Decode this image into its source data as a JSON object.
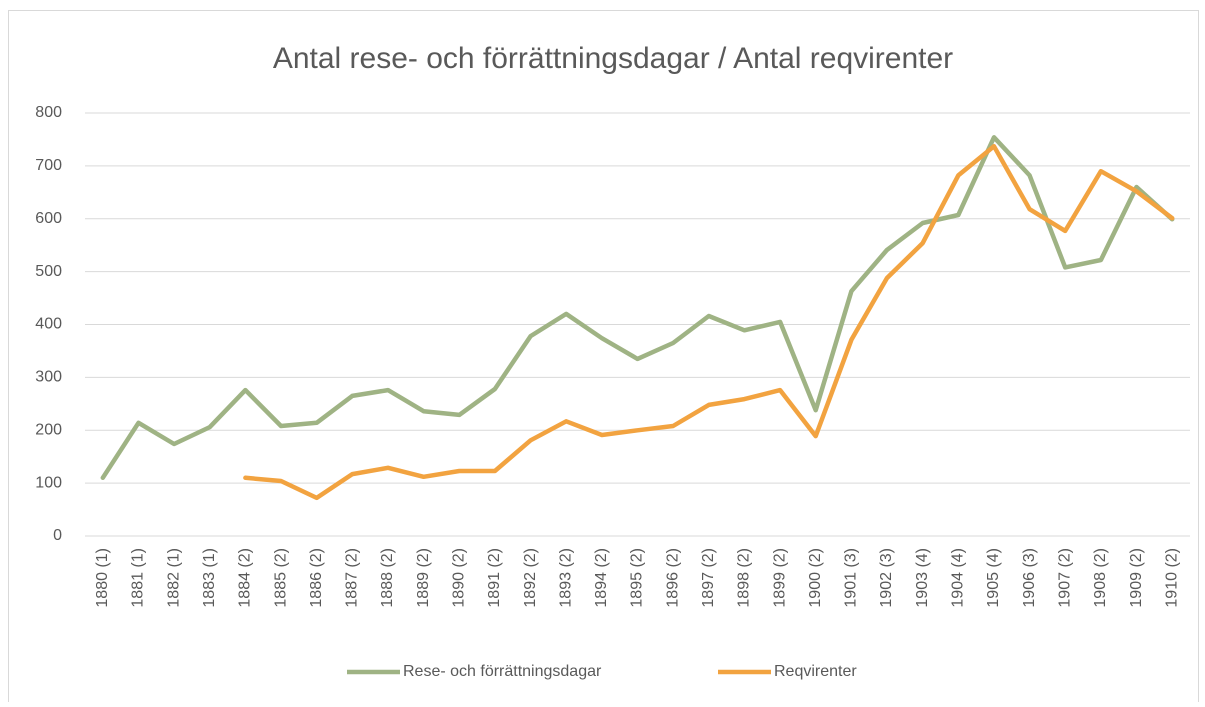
{
  "chart_data": {
    "type": "line",
    "title": "Antal rese- och förrättningsdagar / Antal reqvirenter",
    "categories": [
      "1880 (1)",
      "1881 (1)",
      "1882 (1)",
      "1883 (1)",
      "1884 (2)",
      "1885 (2)",
      "1886 (2)",
      "1887 (2)",
      "1888 (2)",
      "1889 (2)",
      "1890 (2)",
      "1891 (2)",
      "1892 (2)",
      "1893 (2)",
      "1894 (2)",
      "1895 (2)",
      "1896 (2)",
      "1897 (2)",
      "1898 (2)",
      "1899 (2)",
      "1900 (2)",
      "1901 (3)",
      "1902 (3)",
      "1903 (4)",
      "1904 (4)",
      "1905 (4)",
      "1906 (3)",
      "1907 (2)",
      "1908 (2)",
      "1909 (2)",
      "1910 (2)"
    ],
    "series": [
      {
        "name": "Rese- och förrättningsdagar",
        "color": "#9fb384",
        "values": [
          110,
          214,
          174,
          206,
          276,
          208,
          214,
          265,
          276,
          236,
          229,
          278,
          378,
          420,
          374,
          335,
          365,
          416,
          389,
          405,
          238,
          463,
          541,
          592,
          607,
          754,
          682,
          508,
          522,
          660,
          599
        ]
      },
      {
        "name": "Reqvirenter",
        "color": "#f2a340",
        "values": [
          null,
          null,
          null,
          null,
          110,
          104,
          72,
          117,
          129,
          112,
          123,
          123,
          181,
          217,
          191,
          200,
          208,
          248,
          259,
          276,
          189,
          371,
          488,
          554,
          682,
          737,
          618,
          577,
          690,
          652,
          601
        ]
      }
    ],
    "ylim": [
      0,
      800
    ],
    "yticks": [
      0,
      100,
      200,
      300,
      400,
      500,
      600,
      700,
      800
    ],
    "grid": true,
    "legend": "bottom"
  }
}
